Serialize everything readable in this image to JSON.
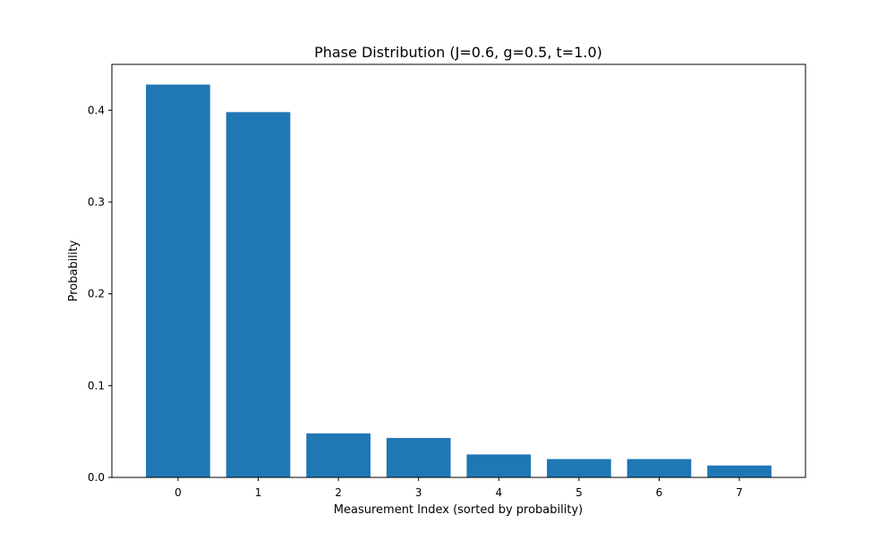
{
  "chart_data": {
    "type": "bar",
    "title": "Phase Distribution (J=0.6, g=0.5, t=1.0)",
    "xlabel": "Measurement Index (sorted by probability)",
    "ylabel": "Probability",
    "categories": [
      "0",
      "1",
      "2",
      "3",
      "4",
      "5",
      "6",
      "7"
    ],
    "values": [
      0.428,
      0.398,
      0.048,
      0.043,
      0.025,
      0.02,
      0.02,
      0.013
    ],
    "ylim": [
      0,
      0.45
    ],
    "yticks": [
      0.0,
      0.1,
      0.2,
      0.3,
      0.4
    ],
    "ytick_labels": [
      "0.0",
      "0.1",
      "0.2",
      "0.3",
      "0.4"
    ],
    "grid": false,
    "bar_color": "#1f77b4"
  }
}
